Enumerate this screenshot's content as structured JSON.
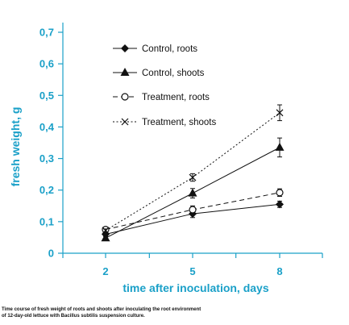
{
  "chart_data": {
    "type": "line",
    "title": "",
    "xlabel": "time after inoculation, days",
    "ylabel": "fresh weight, g",
    "x": [
      2,
      5,
      8
    ],
    "x_tick_labels": [
      "2",
      "5",
      "8"
    ],
    "ylim": [
      0,
      0.7
    ],
    "y_ticks": [
      0,
      0.1,
      0.2,
      0.3,
      0.4,
      0.5,
      0.6,
      0.7
    ],
    "y_tick_labels": [
      "0",
      "0,1",
      "0,2",
      "0,3",
      "0,4",
      "0,5",
      "0,6",
      "0,7"
    ],
    "grid": false,
    "legend_position": "top-center",
    "series": [
      {
        "name": "Control, roots",
        "values": [
          0.06,
          0.125,
          0.155
        ],
        "errors": [
          0.005,
          0.012,
          0.01
        ],
        "marker": "diamond",
        "line": "solid"
      },
      {
        "name": "Control, shoots",
        "values": [
          0.048,
          0.19,
          0.335
        ],
        "errors": [
          0.005,
          0.015,
          0.03
        ],
        "marker": "triangle",
        "line": "solid"
      },
      {
        "name": "Treatment, roots",
        "values": [
          0.075,
          0.138,
          0.192
        ],
        "errors": [
          0.005,
          0.012,
          0.012
        ],
        "marker": "circle-open",
        "line": "dashed"
      },
      {
        "name": "Treatment, shoots",
        "values": [
          0.072,
          0.24,
          0.445
        ],
        "errors": [
          0.005,
          0.012,
          0.025
        ],
        "marker": "cross",
        "line": "dotted"
      }
    ]
  },
  "caption": {
    "line1": "Time course of fresh weight of roots and shoots after inoculating the root environment",
    "line2": "of 12-day-old lettuce with Bacillus subtilis suspension culture."
  },
  "colors": {
    "axis": "#1aa0c8",
    "ink": "#111111"
  }
}
